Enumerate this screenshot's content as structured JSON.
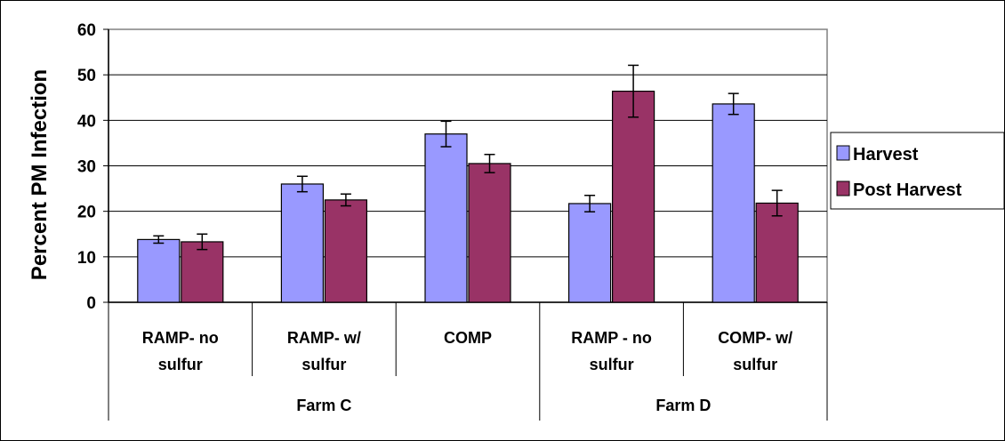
{
  "chart_data": {
    "type": "bar",
    "ylabel": "Percent PM Infection",
    "ylim": [
      0,
      60
    ],
    "yticks": [
      0,
      10,
      20,
      30,
      40,
      50,
      60
    ],
    "grid": true,
    "legend_position": "right",
    "categories": [
      {
        "label_lines": [
          "RAMP- no",
          "sulfur"
        ],
        "group": "Farm C"
      },
      {
        "label_lines": [
          "RAMP- w/",
          "sulfur"
        ],
        "group": "Farm C"
      },
      {
        "label_lines": [
          "COMP"
        ],
        "group": "Farm C"
      },
      {
        "label_lines": [
          "RAMP - no",
          "sulfur"
        ],
        "group": "Farm D"
      },
      {
        "label_lines": [
          "COMP- w/",
          "sulfur"
        ],
        "group": "Farm D"
      }
    ],
    "groups": [
      {
        "name": "Farm C",
        "count": 3
      },
      {
        "name": "Farm D",
        "count": 2
      }
    ],
    "series": [
      {
        "name": "Harvest",
        "color": "#9999FF",
        "values": [
          13.8,
          26.0,
          37.0,
          21.7,
          43.6
        ],
        "errors": [
          0.8,
          1.7,
          2.8,
          1.8,
          2.3
        ]
      },
      {
        "name": "Post Harvest",
        "color": "#993366",
        "values": [
          13.3,
          22.5,
          30.5,
          46.4,
          21.8
        ],
        "errors": [
          1.7,
          1.3,
          2.0,
          5.7,
          2.8
        ]
      }
    ]
  }
}
